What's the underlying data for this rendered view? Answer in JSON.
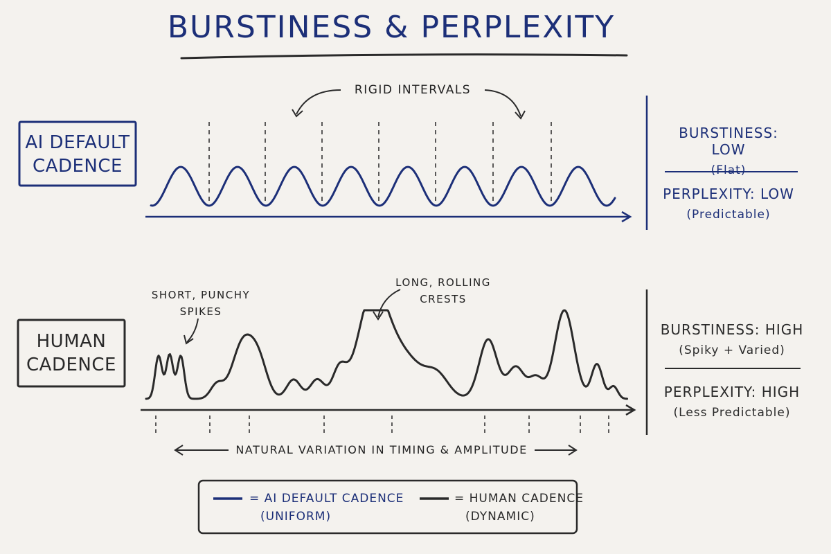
{
  "title": "BURSTINESS & PERPLEXITY",
  "colors": {
    "ai": "#1c2f78",
    "human": "#2a2a2a",
    "background": "#f4f2ee"
  },
  "top_panel": {
    "label_line1": "AI DEFAULT",
    "label_line2": "CADENCE",
    "annotation": "RIGID INTERVALS",
    "burstiness_label": "BURSTINESS: LOW",
    "burstiness_note": "(Flat)",
    "perplexity_label": "PERPLEXITY: LOW",
    "perplexity_note": "(Predictable)"
  },
  "bottom_panel": {
    "label_line1": "HUMAN",
    "label_line2": "CADENCE",
    "annotation_spikes_line1": "SHORT, PUNCHY",
    "annotation_spikes_line2": "SPIKES",
    "annotation_crests_line1": "LONG, ROLLING",
    "annotation_crests_line2": "CRESTS",
    "variation_note": "NATURAL VARIATION IN TIMING & AMPLITUDE",
    "burstiness_label": "BURSTINESS: HIGH",
    "burstiness_note": "(Spiky + Varied)",
    "perplexity_label": "PERPLEXITY: HIGH",
    "perplexity_note": "(Less Predictable)"
  },
  "legend": {
    "ai_line1": "= AI DEFAULT CADENCE",
    "ai_line2": "(UNIFORM)",
    "human_line1": "= HUMAN CADENCE",
    "human_line2": "(DYNAMIC)"
  }
}
